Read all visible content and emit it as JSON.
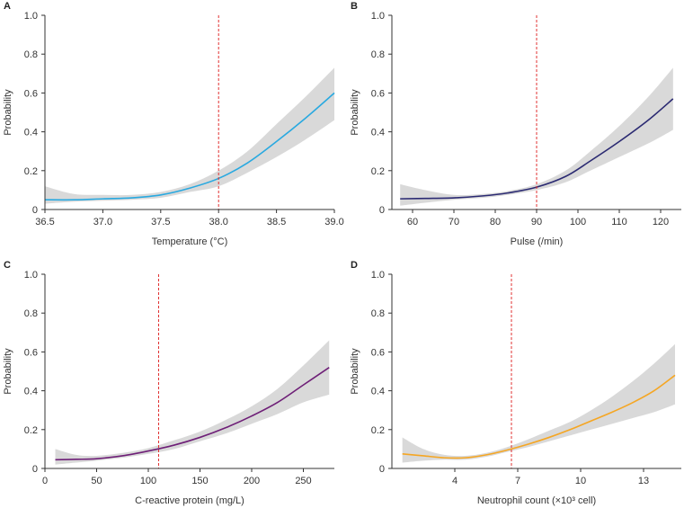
{
  "chart_data": [
    {
      "panel": "A",
      "type": "line",
      "xlabel": "Temperature (°C)",
      "ylabel": "Probability",
      "xlim": [
        36.5,
        39.0
      ],
      "ylim": [
        0,
        1.0
      ],
      "xticks": [
        "36.5",
        "37.0",
        "37.5",
        "38.0",
        "38.5",
        "39.0"
      ],
      "yticks": [
        "0",
        "0.2",
        "0.4",
        "0.6",
        "0.8",
        "1.0"
      ],
      "cutoff": 38.0,
      "line_color": "#29a9e0",
      "series": [
        {
          "name": "Probability",
          "x": [
            36.5,
            36.75,
            37.0,
            37.25,
            37.5,
            37.75,
            38.0,
            38.25,
            38.5,
            38.75,
            39.0
          ],
          "values": [
            0.05,
            0.05,
            0.055,
            0.06,
            0.075,
            0.11,
            0.16,
            0.24,
            0.35,
            0.47,
            0.6
          ]
        },
        {
          "name": "95% CI lower",
          "x": [
            36.5,
            36.75,
            37.0,
            37.25,
            37.5,
            37.75,
            38.0,
            38.25,
            38.5,
            38.75,
            39.0
          ],
          "values": [
            0.03,
            0.04,
            0.045,
            0.05,
            0.06,
            0.09,
            0.12,
            0.19,
            0.27,
            0.36,
            0.46
          ]
        },
        {
          "name": "95% CI upper",
          "x": [
            36.5,
            36.75,
            37.0,
            37.25,
            37.5,
            37.75,
            38.0,
            38.25,
            38.5,
            38.75,
            39.0
          ],
          "values": [
            0.12,
            0.08,
            0.075,
            0.075,
            0.09,
            0.13,
            0.2,
            0.3,
            0.44,
            0.58,
            0.73
          ]
        }
      ]
    },
    {
      "panel": "B",
      "type": "line",
      "xlabel": "Pulse (/min)",
      "ylabel": "Probability",
      "xlim": [
        55,
        125
      ],
      "ylim": [
        0,
        1.0
      ],
      "xticks": [
        "60",
        "70",
        "80",
        "90",
        "100",
        "110",
        "120"
      ],
      "xtick_values": [
        60,
        70,
        80,
        90,
        100,
        110,
        120
      ],
      "yticks": [
        "0",
        "0.2",
        "0.4",
        "0.6",
        "0.8",
        "1.0"
      ],
      "cutoff": 90,
      "line_color": "#2b2a72",
      "series": [
        {
          "name": "Probability",
          "x": [
            57,
            63,
            70,
            77,
            83,
            90,
            97,
            103,
            110,
            117,
            123
          ],
          "values": [
            0.055,
            0.057,
            0.06,
            0.07,
            0.085,
            0.115,
            0.17,
            0.25,
            0.35,
            0.46,
            0.57
          ]
        },
        {
          "name": "95% CI lower",
          "x": [
            57,
            63,
            70,
            77,
            83,
            90,
            97,
            103,
            110,
            117,
            123
          ],
          "values": [
            0.02,
            0.035,
            0.05,
            0.06,
            0.075,
            0.1,
            0.14,
            0.2,
            0.27,
            0.34,
            0.41
          ]
        },
        {
          "name": "95% CI upper",
          "x": [
            57,
            63,
            70,
            77,
            83,
            90,
            97,
            103,
            110,
            117,
            123
          ],
          "values": [
            0.13,
            0.1,
            0.075,
            0.08,
            0.095,
            0.13,
            0.2,
            0.3,
            0.43,
            0.58,
            0.73
          ]
        }
      ]
    },
    {
      "panel": "C",
      "type": "line",
      "xlabel": "C-reactive protein (mg/L)",
      "ylabel": "Probability",
      "xlim": [
        0,
        280
      ],
      "ylim": [
        0,
        1.0
      ],
      "xticks": [
        "0",
        "50",
        "100",
        "150",
        "200",
        "250"
      ],
      "xtick_values": [
        0,
        50,
        100,
        150,
        200,
        250
      ],
      "yticks": [
        "0",
        "0.2",
        "0.4",
        "0.6",
        "0.8",
        "1.0"
      ],
      "cutoff": 110,
      "line_color": "#6e1f77",
      "series": [
        {
          "name": "Probability",
          "x": [
            10,
            30,
            50,
            75,
            100,
            125,
            150,
            175,
            200,
            225,
            250,
            275
          ],
          "values": [
            0.045,
            0.047,
            0.05,
            0.065,
            0.09,
            0.12,
            0.16,
            0.21,
            0.27,
            0.34,
            0.43,
            0.52
          ]
        },
        {
          "name": "95% CI lower",
          "x": [
            10,
            30,
            50,
            75,
            100,
            125,
            150,
            175,
            200,
            225,
            250,
            275
          ],
          "values": [
            0.02,
            0.03,
            0.04,
            0.055,
            0.075,
            0.1,
            0.14,
            0.18,
            0.23,
            0.28,
            0.34,
            0.38
          ]
        },
        {
          "name": "95% CI upper",
          "x": [
            10,
            30,
            50,
            75,
            100,
            125,
            150,
            175,
            200,
            225,
            250,
            275
          ],
          "values": [
            0.1,
            0.07,
            0.065,
            0.08,
            0.105,
            0.145,
            0.19,
            0.25,
            0.32,
            0.41,
            0.53,
            0.66
          ]
        }
      ]
    },
    {
      "panel": "D",
      "type": "line",
      "xlabel": "Neutrophil count (×10³ cell)",
      "ylabel": "Probability",
      "xlim": [
        1,
        14.8
      ],
      "ylim": [
        0,
        1.0
      ],
      "xticks": [
        "4",
        "7",
        "10",
        "13"
      ],
      "xtick_values": [
        4,
        7,
        10,
        13
      ],
      "yticks": [
        "0",
        "0.2",
        "0.4",
        "0.6",
        "0.8",
        "1.0"
      ],
      "cutoff": 6.7,
      "line_color": "#f5a623",
      "series": [
        {
          "name": "Probability",
          "x": [
            1.5,
            2.5,
            3.5,
            4.5,
            5.5,
            6.5,
            7.5,
            8.5,
            9.5,
            10.5,
            11.5,
            12.5,
            13.5,
            14.5
          ],
          "values": [
            0.075,
            0.065,
            0.055,
            0.055,
            0.07,
            0.095,
            0.125,
            0.16,
            0.2,
            0.245,
            0.29,
            0.34,
            0.4,
            0.48
          ]
        },
        {
          "name": "95% CI lower",
          "x": [
            1.5,
            2.5,
            3.5,
            4.5,
            5.5,
            6.5,
            7.5,
            8.5,
            9.5,
            10.5,
            11.5,
            12.5,
            13.5,
            14.5
          ],
          "values": [
            0.03,
            0.04,
            0.045,
            0.045,
            0.06,
            0.085,
            0.11,
            0.14,
            0.17,
            0.2,
            0.23,
            0.26,
            0.29,
            0.33
          ]
        },
        {
          "name": "95% CI upper",
          "x": [
            1.5,
            2.5,
            3.5,
            4.5,
            5.5,
            6.5,
            7.5,
            8.5,
            9.5,
            10.5,
            11.5,
            12.5,
            13.5,
            14.5
          ],
          "values": [
            0.16,
            0.1,
            0.07,
            0.065,
            0.08,
            0.11,
            0.15,
            0.195,
            0.24,
            0.3,
            0.37,
            0.45,
            0.54,
            0.64
          ]
        }
      ]
    }
  ],
  "colors": {
    "ci_band": "#d9d9d9",
    "cutoff_line": "#e03030",
    "axis": "#333333"
  }
}
